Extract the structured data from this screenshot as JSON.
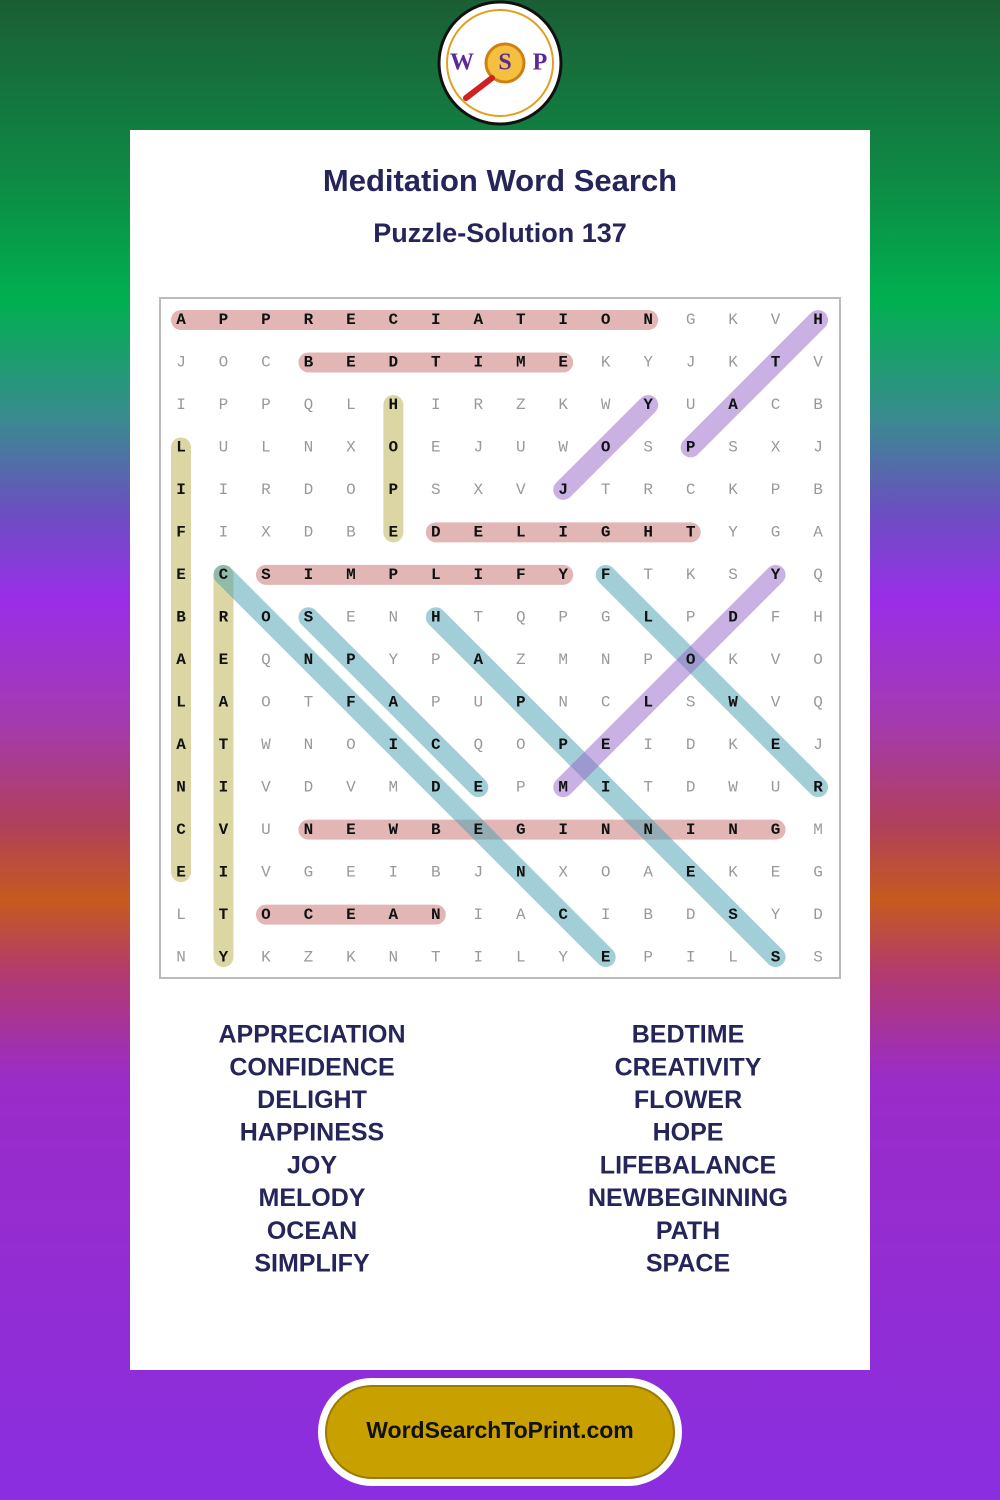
{
  "logo": [
    "W",
    "S",
    "P"
  ],
  "header": {
    "title": "Meditation Word Search",
    "subtitle": "Puzzle-Solution 137"
  },
  "grid": [
    [
      "A",
      "P",
      "P",
      "R",
      "E",
      "C",
      "I",
      "A",
      "T",
      "I",
      "O",
      "N",
      "G",
      "K",
      "V",
      "H"
    ],
    [
      "J",
      "O",
      "C",
      "B",
      "E",
      "D",
      "T",
      "I",
      "M",
      "E",
      "K",
      "Y",
      "J",
      "K",
      "T",
      "V"
    ],
    [
      "I",
      "P",
      "P",
      "Q",
      "L",
      "H",
      "I",
      "R",
      "Z",
      "K",
      "W",
      "Y",
      "U",
      "A",
      "C",
      "B"
    ],
    [
      "L",
      "U",
      "L",
      "N",
      "X",
      "O",
      "E",
      "J",
      "U",
      "W",
      "O",
      "S",
      "P",
      "S",
      "X",
      "J"
    ],
    [
      "I",
      "I",
      "R",
      "D",
      "O",
      "P",
      "S",
      "X",
      "V",
      "J",
      "T",
      "R",
      "C",
      "K",
      "P",
      "B"
    ],
    [
      "F",
      "I",
      "X",
      "D",
      "B",
      "E",
      "D",
      "E",
      "L",
      "I",
      "G",
      "H",
      "T",
      "Y",
      "G",
      "A"
    ],
    [
      "E",
      "C",
      "S",
      "I",
      "M",
      "P",
      "L",
      "I",
      "F",
      "Y",
      "F",
      "T",
      "K",
      "S",
      "Y",
      "Q"
    ],
    [
      "B",
      "R",
      "O",
      "S",
      "E",
      "N",
      "H",
      "T",
      "Q",
      "P",
      "G",
      "L",
      "P",
      "D",
      "F",
      "H"
    ],
    [
      "A",
      "E",
      "Q",
      "N",
      "P",
      "Y",
      "P",
      "A",
      "Z",
      "M",
      "N",
      "P",
      "O",
      "K",
      "V",
      "O"
    ],
    [
      "L",
      "A",
      "O",
      "T",
      "F",
      "A",
      "P",
      "U",
      "P",
      "N",
      "C",
      "L",
      "S",
      "W",
      "V",
      "Q"
    ],
    [
      "A",
      "T",
      "W",
      "N",
      "O",
      "I",
      "C",
      "Q",
      "O",
      "P",
      "E",
      "I",
      "D",
      "K",
      "E",
      "J"
    ],
    [
      "N",
      "I",
      "V",
      "D",
      "V",
      "M",
      "D",
      "E",
      "P",
      "M",
      "I",
      "T",
      "D",
      "W",
      "U",
      "R"
    ],
    [
      "C",
      "V",
      "U",
      "N",
      "E",
      "W",
      "B",
      "E",
      "G",
      "I",
      "N",
      "N",
      "I",
      "N",
      "G",
      "M"
    ],
    [
      "E",
      "I",
      "V",
      "G",
      "E",
      "I",
      "B",
      "J",
      "N",
      "X",
      "O",
      "A",
      "E",
      "K",
      "E",
      "G"
    ],
    [
      "L",
      "T",
      "O",
      "C",
      "E",
      "A",
      "N",
      "I",
      "A",
      "C",
      "I",
      "B",
      "D",
      "S",
      "Y",
      "D"
    ],
    [
      "N",
      "Y",
      "K",
      "Z",
      "K",
      "N",
      "T",
      "I",
      "L",
      "Y",
      "E",
      "P",
      "I",
      "L",
      "S",
      "S"
    ]
  ],
  "words": {
    "left": [
      "APPRECIATION",
      "CONFIDENCE",
      "DELIGHT",
      "HAPPINESS",
      "JOY",
      "MELODY",
      "OCEAN",
      "SIMPLIFY"
    ],
    "right": [
      "BEDTIME",
      "CREATIVITY",
      "FLOWER",
      "HOPE",
      "LIFEBALANCE",
      "NEWBEGINNING",
      "PATH",
      "SPACE"
    ]
  },
  "footer": {
    "link": "WordSearchToPrint.com"
  }
}
